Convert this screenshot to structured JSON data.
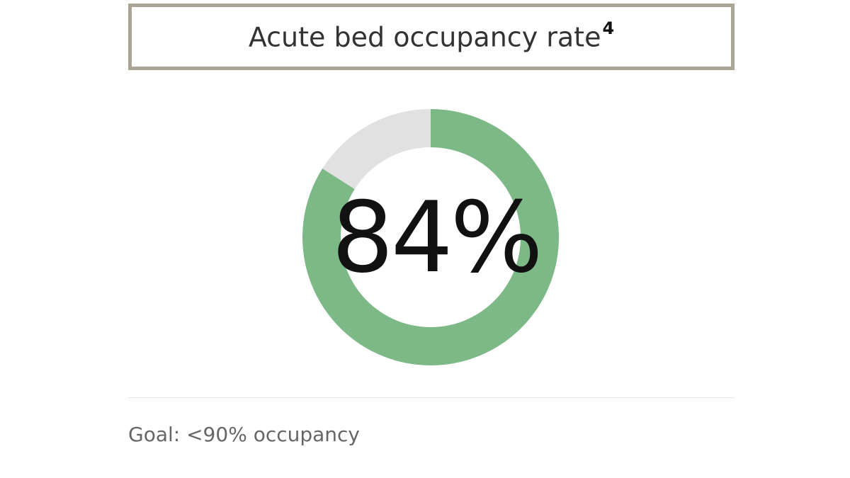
{
  "header": {
    "title": "Acute bed occupancy rate",
    "footnote": "4"
  },
  "metric": {
    "value_label": "84%"
  },
  "footer": {
    "goal_text": "Goal: <90% occupancy"
  },
  "colors": {
    "filled": "#7db887",
    "remaining": "#e1e1e1",
    "border": "#aaa598",
    "value_text": "#111111"
  },
  "chart_data": {
    "type": "pie",
    "style": "donut",
    "title": "Acute bed occupancy rate",
    "slices": [
      {
        "value": 84,
        "color": "#7db887"
      },
      {
        "value": 16,
        "color": "#e1e1e1"
      }
    ],
    "center_label": "84%",
    "start_angle": "top",
    "direction": "clockwise"
  }
}
